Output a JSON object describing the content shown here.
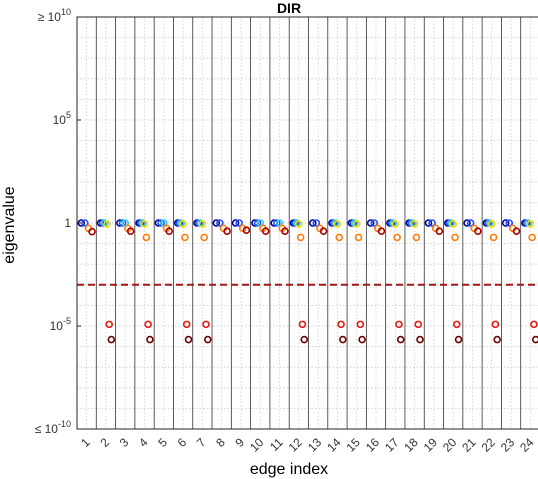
{
  "chart_data": {
    "type": "scatter",
    "title": "DIR",
    "xlabel": "edge index",
    "ylabel": "eigenvalue",
    "yscale": "log",
    "ylim": [
      1e-10,
      10000000000.0
    ],
    "grid": true,
    "categories": [
      "1",
      "2",
      "3",
      "4",
      "5",
      "6",
      "7",
      "8",
      "9",
      "10",
      "11",
      "12",
      "13",
      "14",
      "15",
      "16",
      "17",
      "18",
      "19",
      "20",
      "21",
      "22",
      "23",
      "24"
    ],
    "y_ticks": [
      {
        "value": 10000000000.0,
        "label": "≥ 10",
        "exp": "10"
      },
      {
        "value": 100000.0,
        "label": "10",
        "exp": "5"
      },
      {
        "value": 1,
        "label": "1",
        "exp": ""
      },
      {
        "value": 1e-05,
        "label": "10",
        "exp": "-5"
      },
      {
        "value": 1e-10,
        "label": "≤ 10",
        "exp": "-10"
      }
    ],
    "threshold": 0.001,
    "threshold_color": "#a01818",
    "edges": [
      {
        "edge": 1,
        "points": [
          [
            1,
            "#00008b"
          ],
          [
            1,
            "#1f4fff"
          ],
          [
            0.55,
            "#ff7f0e"
          ],
          [
            0.38,
            "#a50000"
          ]
        ]
      },
      {
        "edge": 2,
        "points": [
          [
            1,
            "#00008b"
          ],
          [
            1,
            "#1f4fff"
          ],
          [
            1,
            "#2ad4e0"
          ],
          [
            0.9,
            "#ffd700"
          ],
          [
            1.2e-05,
            "#e8190e"
          ],
          [
            2.2e-06,
            "#6b0000"
          ]
        ]
      },
      {
        "edge": 3,
        "points": [
          [
            1,
            "#00008b"
          ],
          [
            1,
            "#1f4fff"
          ],
          [
            1,
            "#2ad4e0"
          ],
          [
            0.55,
            "#ff7f0e"
          ],
          [
            0.4,
            "#a50000"
          ]
        ]
      },
      {
        "edge": 4,
        "points": [
          [
            1,
            "#00008b"
          ],
          [
            1,
            "#1f4fff"
          ],
          [
            1,
            "#2ad4e0"
          ],
          [
            0.9,
            "#ffd700"
          ],
          [
            0.2,
            "#ff7f0e"
          ],
          [
            1.2e-05,
            "#e8190e"
          ],
          [
            2.2e-06,
            "#6b0000"
          ]
        ]
      },
      {
        "edge": 5,
        "points": [
          [
            1,
            "#00008b"
          ],
          [
            1,
            "#1f4fff"
          ],
          [
            1,
            "#2ad4e0"
          ],
          [
            0.55,
            "#ff7f0e"
          ],
          [
            0.4,
            "#a50000"
          ]
        ]
      },
      {
        "edge": 6,
        "points": [
          [
            1,
            "#00008b"
          ],
          [
            1,
            "#1f4fff"
          ],
          [
            1,
            "#2ad4e0"
          ],
          [
            0.9,
            "#ffd700"
          ],
          [
            0.2,
            "#ff7f0e"
          ],
          [
            1.2e-05,
            "#e8190e"
          ],
          [
            2.2e-06,
            "#6b0000"
          ]
        ]
      },
      {
        "edge": 7,
        "points": [
          [
            1,
            "#00008b"
          ],
          [
            1,
            "#1f4fff"
          ],
          [
            1,
            "#2ad4e0"
          ],
          [
            0.9,
            "#ffd700"
          ],
          [
            0.2,
            "#ff7f0e"
          ],
          [
            1.2e-05,
            "#e8190e"
          ],
          [
            2.2e-06,
            "#6b0000"
          ]
        ]
      },
      {
        "edge": 8,
        "points": [
          [
            1,
            "#00008b"
          ],
          [
            1,
            "#1f4fff"
          ],
          [
            0.55,
            "#ff7f0e"
          ],
          [
            0.4,
            "#a50000"
          ]
        ]
      },
      {
        "edge": 9,
        "points": [
          [
            1,
            "#00008b"
          ],
          [
            1,
            "#1f4fff"
          ],
          [
            0.55,
            "#ff7f0e"
          ],
          [
            0.45,
            "#a50000"
          ]
        ]
      },
      {
        "edge": 10,
        "points": [
          [
            1,
            "#00008b"
          ],
          [
            1,
            "#1f4fff"
          ],
          [
            1,
            "#2ad4e0"
          ],
          [
            0.55,
            "#ff7f0e"
          ],
          [
            0.4,
            "#a50000"
          ]
        ]
      },
      {
        "edge": 11,
        "points": [
          [
            1,
            "#00008b"
          ],
          [
            1,
            "#1f4fff"
          ],
          [
            1,
            "#2ad4e0"
          ],
          [
            0.55,
            "#ff7f0e"
          ],
          [
            0.4,
            "#a50000"
          ]
        ]
      },
      {
        "edge": 12,
        "points": [
          [
            1,
            "#00008b"
          ],
          [
            1,
            "#1f4fff"
          ],
          [
            1,
            "#2ad4e0"
          ],
          [
            0.9,
            "#ffd700"
          ],
          [
            0.2,
            "#ff7f0e"
          ],
          [
            1.2e-05,
            "#e8190e"
          ],
          [
            2.2e-06,
            "#6b0000"
          ]
        ]
      },
      {
        "edge": 13,
        "points": [
          [
            1,
            "#00008b"
          ],
          [
            1,
            "#1f4fff"
          ],
          [
            0.55,
            "#ff7f0e"
          ],
          [
            0.4,
            "#a50000"
          ]
        ]
      },
      {
        "edge": 14,
        "points": [
          [
            1,
            "#00008b"
          ],
          [
            1,
            "#1f4fff"
          ],
          [
            1,
            "#2ad4e0"
          ],
          [
            0.9,
            "#ffd700"
          ],
          [
            0.2,
            "#ff7f0e"
          ],
          [
            1.2e-05,
            "#e8190e"
          ],
          [
            2.2e-06,
            "#6b0000"
          ]
        ]
      },
      {
        "edge": 15,
        "points": [
          [
            1,
            "#00008b"
          ],
          [
            1,
            "#1f4fff"
          ],
          [
            1,
            "#2ad4e0"
          ],
          [
            0.9,
            "#ffd700"
          ],
          [
            0.2,
            "#ff7f0e"
          ],
          [
            1.2e-05,
            "#e8190e"
          ],
          [
            2.2e-06,
            "#6b0000"
          ]
        ]
      },
      {
        "edge": 16,
        "points": [
          [
            1,
            "#00008b"
          ],
          [
            1,
            "#1f4fff"
          ],
          [
            0.55,
            "#ff7f0e"
          ],
          [
            0.4,
            "#a50000"
          ]
        ]
      },
      {
        "edge": 17,
        "points": [
          [
            1,
            "#00008b"
          ],
          [
            1,
            "#1f4fff"
          ],
          [
            1,
            "#2ad4e0"
          ],
          [
            0.9,
            "#ffd700"
          ],
          [
            0.2,
            "#ff7f0e"
          ],
          [
            1.2e-05,
            "#e8190e"
          ],
          [
            2.2e-06,
            "#6b0000"
          ]
        ]
      },
      {
        "edge": 18,
        "points": [
          [
            1,
            "#00008b"
          ],
          [
            1,
            "#1f4fff"
          ],
          [
            1,
            "#2ad4e0"
          ],
          [
            0.9,
            "#ffd700"
          ],
          [
            0.2,
            "#ff7f0e"
          ],
          [
            1.2e-05,
            "#e8190e"
          ],
          [
            2.2e-06,
            "#6b0000"
          ]
        ]
      },
      {
        "edge": 19,
        "points": [
          [
            1,
            "#00008b"
          ],
          [
            1,
            "#1f4fff"
          ],
          [
            0.55,
            "#ff7f0e"
          ],
          [
            0.4,
            "#a50000"
          ]
        ]
      },
      {
        "edge": 20,
        "points": [
          [
            1,
            "#00008b"
          ],
          [
            1,
            "#1f4fff"
          ],
          [
            1,
            "#2ad4e0"
          ],
          [
            0.9,
            "#ffd700"
          ],
          [
            0.2,
            "#ff7f0e"
          ],
          [
            1.2e-05,
            "#e8190e"
          ],
          [
            2.2e-06,
            "#6b0000"
          ]
        ]
      },
      {
        "edge": 21,
        "points": [
          [
            1,
            "#00008b"
          ],
          [
            1,
            "#1f4fff"
          ],
          [
            0.55,
            "#ff7f0e"
          ],
          [
            0.4,
            "#a50000"
          ]
        ]
      },
      {
        "edge": 22,
        "points": [
          [
            1,
            "#00008b"
          ],
          [
            1,
            "#1f4fff"
          ],
          [
            1,
            "#2ad4e0"
          ],
          [
            0.9,
            "#ffd700"
          ],
          [
            0.2,
            "#ff7f0e"
          ],
          [
            1.2e-05,
            "#e8190e"
          ],
          [
            2.2e-06,
            "#6b0000"
          ]
        ]
      },
      {
        "edge": 23,
        "points": [
          [
            1,
            "#00008b"
          ],
          [
            1,
            "#1f4fff"
          ],
          [
            0.55,
            "#ff7f0e"
          ],
          [
            0.4,
            "#a50000"
          ]
        ]
      },
      {
        "edge": 24,
        "points": [
          [
            1,
            "#00008b"
          ],
          [
            1,
            "#1f4fff"
          ],
          [
            1,
            "#2ad4e0"
          ],
          [
            0.9,
            "#ffd700"
          ],
          [
            0.2,
            "#ff7f0e"
          ],
          [
            1.2e-05,
            "#e8190e"
          ],
          [
            2.2e-06,
            "#6b0000"
          ]
        ]
      }
    ]
  }
}
